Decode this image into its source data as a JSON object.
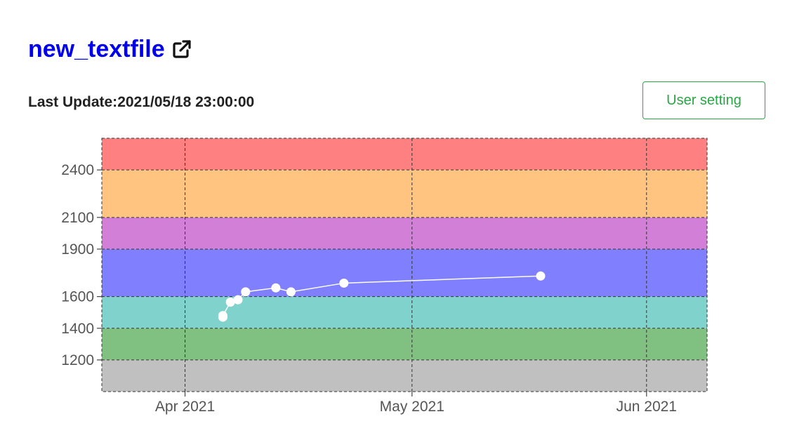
{
  "header": {
    "title": "new_textfile",
    "link_icon": "external-link-icon",
    "last_update_label": "Last Update:",
    "last_update_value": "2021/05/18 23:00:00",
    "user_setting_label": "User setting"
  },
  "colors": {
    "title": "#0000ee",
    "button": "#28a745"
  },
  "chart_data": {
    "type": "line",
    "title": "",
    "xlabel": "",
    "ylabel": "",
    "ylim": [
      1000,
      2600
    ],
    "xlim": [
      "2021-03-21",
      "2021-06-09"
    ],
    "x_ticks": [
      {
        "date": "2021-04-01",
        "label": "Apr 2021"
      },
      {
        "date": "2021-05-01",
        "label": "May 2021"
      },
      {
        "date": "2021-06-01",
        "label": "Jun 2021"
      }
    ],
    "y_ticks": [
      1200,
      1400,
      1600,
      1900,
      2100,
      2400
    ],
    "grid": true,
    "bands": [
      {
        "from": 1000,
        "to": 1200,
        "color": "#c0c0c0"
      },
      {
        "from": 1200,
        "to": 1400,
        "color": "#80c080"
      },
      {
        "from": 1400,
        "to": 1600,
        "color": "#80d2cd"
      },
      {
        "from": 1600,
        "to": 1900,
        "color": "#8080ff"
      },
      {
        "from": 1900,
        "to": 2100,
        "color": "#d280d7"
      },
      {
        "from": 2100,
        "to": 2400,
        "color": "#ffc580"
      },
      {
        "from": 2400,
        "to": 2600,
        "color": "#ff8080"
      }
    ],
    "series": [
      {
        "color": "#ffffff",
        "points": [
          {
            "x": "2021-04-06",
            "y": 1470
          },
          {
            "x": "2021-04-06",
            "y": 1480
          },
          {
            "x": "2021-04-07",
            "y": 1565
          },
          {
            "x": "2021-04-08",
            "y": 1580
          },
          {
            "x": "2021-04-09",
            "y": 1630
          },
          {
            "x": "2021-04-13",
            "y": 1655
          },
          {
            "x": "2021-04-15",
            "y": 1630
          },
          {
            "x": "2021-04-22",
            "y": 1685
          },
          {
            "x": "2021-05-18",
            "y": 1730
          }
        ]
      }
    ]
  }
}
